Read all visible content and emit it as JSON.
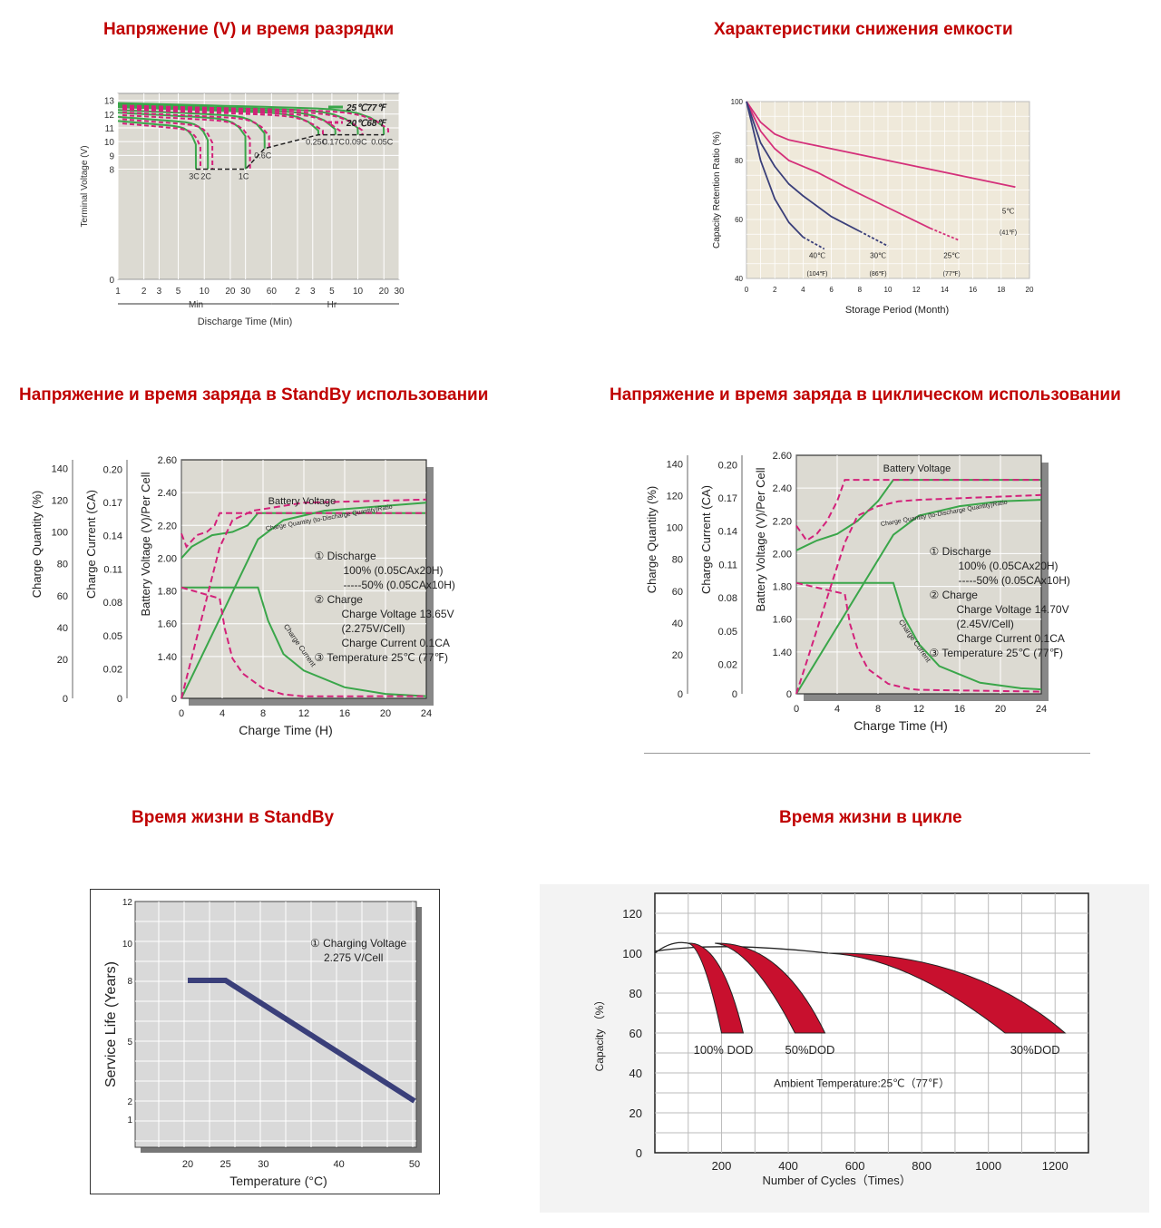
{
  "titles": {
    "discharge": "Напряжение (V) и время разрядки",
    "capacity_loss": "Характеристики снижения емкости",
    "standby_charge": "Напряжение и время заряда в StandBy использовании",
    "cyclic_charge": "Напряжение и время заряда в циклическом использовании",
    "standby_life": "Время жизни в StandBy",
    "cycle_life": "Время жизни в цикле"
  },
  "colors": {
    "title": "#c00000",
    "green": "#3aa64a",
    "magenta": "#d3217a",
    "navy": "#3a3f7a",
    "pink": "#d4307a",
    "plot_bg": "#dcdad2",
    "crimson": "#c8102e"
  },
  "chart_data": [
    {
      "id": "discharge",
      "type": "line",
      "xlabel": "Discharge Time (Min)",
      "ylabel": "Terminal Voltage (V)",
      "x_ticks_min": [
        "1",
        "2",
        "3",
        "5",
        "10",
        "20",
        "30",
        "60"
      ],
      "x_ticks_hr": [
        "2",
        "3",
        "5",
        "10",
        "20",
        "30"
      ],
      "x_group_labels": [
        "Min",
        "Hr"
      ],
      "y_ticks": [
        "0",
        "8",
        "9",
        "10",
        "11",
        "12",
        "13"
      ],
      "ylim": [
        0,
        13.5
      ],
      "legend": [
        "25℃77℉",
        "20℃68℉"
      ],
      "rates": [
        {
          "label": "3C",
          "minutes": 8,
          "start_v": 11.5
        },
        {
          "label": "2C",
          "minutes": 11,
          "start_v": 11.8
        },
        {
          "label": "1C",
          "minutes": 30,
          "start_v": 12.1
        },
        {
          "label": "0.6C",
          "minutes": 50,
          "start_v": 12.3
        },
        {
          "label": "0.25C",
          "minutes": 210,
          "start_v": 12.5
        },
        {
          "label": "0.17C",
          "minutes": 330,
          "start_v": 12.6
        },
        {
          "label": "0.09C",
          "minutes": 600,
          "start_v": 12.7
        },
        {
          "label": "0.05C",
          "minutes": 1200,
          "start_v": 12.8
        }
      ],
      "final_voltage_points": [
        [
          8,
          8
        ],
        [
          30,
          8
        ],
        [
          50,
          9.5
        ],
        [
          210,
          10.5
        ],
        [
          1200,
          10.5
        ]
      ]
    },
    {
      "id": "capacity_loss",
      "type": "line",
      "xlabel": "Storage Period (Month)",
      "ylabel": "Capacity Retention Ratio (%)",
      "x_ticks": [
        "0",
        "2",
        "4",
        "6",
        "8",
        "10",
        "12",
        "14",
        "16",
        "18",
        "20"
      ],
      "y_ticks": [
        "40",
        "60",
        "80",
        "100"
      ],
      "xlim": [
        0,
        20
      ],
      "ylim": [
        40,
        100
      ],
      "series": [
        {
          "name": "5℃",
          "sub": "(41℉)",
          "x": [
            0,
            1,
            2,
            3,
            5,
            8,
            12,
            16,
            19
          ],
          "y": [
            100,
            93,
            89,
            87,
            85,
            82,
            78,
            74,
            71
          ]
        },
        {
          "name": "25℃",
          "sub": "(77℉)",
          "x": [
            0,
            1,
            2,
            3,
            5,
            7,
            10,
            13,
            15
          ],
          "y": [
            100,
            90,
            84,
            80,
            76,
            71,
            64,
            57,
            53
          ]
        },
        {
          "name": "30℃",
          "sub": "(86℉)",
          "x": [
            0,
            1,
            2,
            3,
            4,
            6,
            8,
            10
          ],
          "y": [
            100,
            86,
            78,
            72,
            68,
            61,
            56,
            51
          ]
        },
        {
          "name": "40℃",
          "sub": "(104℉)",
          "x": [
            0,
            1,
            2,
            3,
            4,
            5.5
          ],
          "y": [
            100,
            80,
            67,
            59,
            54,
            50
          ]
        }
      ]
    },
    {
      "id": "standby_charge",
      "type": "line",
      "xlabel": "Charge Time (H)",
      "axes": [
        {
          "label": "Charge Quantity (%)",
          "ticks": [
            "0",
            "20",
            "40",
            "60",
            "80",
            "100",
            "120",
            "140"
          ]
        },
        {
          "label": "Charge Current (CA)",
          "ticks": [
            "0",
            "0.02",
            "0.05",
            "0.08",
            "0.11",
            "0.14",
            "0.17",
            "0.20"
          ]
        },
        {
          "label": "Battery Voltage (V)/Per Cell",
          "ticks": [
            "0",
            "1.40",
            "1.60",
            "1.80",
            "2.00",
            "2.20",
            "2.40",
            "2.60"
          ]
        }
      ],
      "x_ticks": [
        "0",
        "4",
        "8",
        "12",
        "16",
        "20",
        "24"
      ],
      "curve_labels": [
        "Battery Voltage",
        "Charge Quantity (to-Discharge Quantity)Ratio",
        "Charge Current"
      ],
      "notes": [
        "① Discharge",
        "100% (0.05CAx20H)",
        "-----50% (0.05CAx10H)",
        "② Charge",
        "Charge Voltage 13.65V",
        "(2.275V/Cell)",
        "Charge Current 0.1CA",
        "③ Temperature 25℃ (77℉)"
      ],
      "series": [
        {
          "name": "Battery Voltage",
          "x": [
            0,
            1,
            3,
            5,
            6.5,
            7.5,
            24
          ],
          "y": [
            2.0,
            2.07,
            2.14,
            2.16,
            2.2,
            2.275,
            2.275
          ]
        },
        {
          "name": "Charge Quantity (to-Discharge Quantity)Ratio",
          "x": [
            0,
            7.5,
            10,
            14,
            20,
            24
          ],
          "y": [
            0,
            100,
            112,
            118,
            121,
            123
          ]
        },
        {
          "name": "Charge Current",
          "x": [
            0,
            7.5,
            8.5,
            10,
            12,
            16,
            20,
            24
          ],
          "y": [
            0.1,
            0.1,
            0.07,
            0.04,
            0.025,
            0.01,
            0.004,
            0.002
          ]
        }
      ]
    },
    {
      "id": "cyclic_charge",
      "type": "line",
      "xlabel": "Charge Time (H)",
      "axes": [
        {
          "label": "Charge Quantity (%)",
          "ticks": [
            "0",
            "20",
            "40",
            "60",
            "80",
            "100",
            "120",
            "140"
          ]
        },
        {
          "label": "Charge Current (CA)",
          "ticks": [
            "0",
            "0.02",
            "0.05",
            "0.08",
            "0.11",
            "0.14",
            "0.17",
            "0.20"
          ]
        },
        {
          "label": "Battery Voltage (V)/Per Cell",
          "ticks": [
            "0",
            "1.40",
            "1.60",
            "1.80",
            "2.00",
            "2.20",
            "2.40",
            "2.60"
          ]
        }
      ],
      "x_ticks": [
        "0",
        "4",
        "8",
        "12",
        "16",
        "20",
        "24"
      ],
      "curve_labels": [
        "Battery Voltage",
        "Charge Quantity (to-Discharge Quantity)Ratio",
        "Charge Current"
      ],
      "notes": [
        "① Discharge",
        "100% (0.05CAx20H)",
        "-----50% (0.05CAx10H)",
        "② Charge",
        "Charge Voltage 14.70V",
        "(2.45V/Cell)",
        "Charge Current 0.1CA",
        "③ Temperature 25℃ (77℉)"
      ],
      "series": [
        {
          "name": "Battery Voltage",
          "x": [
            0,
            2,
            4,
            6,
            8,
            9.5,
            24
          ],
          "y": [
            2.02,
            2.08,
            2.12,
            2.2,
            2.32,
            2.45,
            2.45
          ]
        },
        {
          "name": "Charge Quantity (to-Discharge Quantity)Ratio",
          "x": [
            0,
            9.5,
            12,
            16,
            20,
            24
          ],
          "y": [
            0,
            100,
            112,
            118,
            121,
            122
          ]
        },
        {
          "name": "Charge Current",
          "x": [
            0,
            9.5,
            10.5,
            12,
            14,
            18,
            22,
            24
          ],
          "y": [
            0.1,
            0.1,
            0.07,
            0.045,
            0.025,
            0.01,
            0.005,
            0.004
          ]
        }
      ]
    },
    {
      "id": "standby_life",
      "type": "line",
      "xlabel": "Temperature (°C)",
      "ylabel": "Service Life (Years)",
      "x_ticks": [
        "20",
        "25",
        "30",
        "40",
        "50"
      ],
      "y_ticks": [
        "1",
        "2",
        "5",
        "8",
        "10",
        "12"
      ],
      "note_lines": [
        "① Charging Voltage",
        "2.275 V/Cell"
      ],
      "series": [
        {
          "x": [
            20,
            25,
            50
          ],
          "y": [
            8,
            8,
            2
          ]
        }
      ]
    },
    {
      "id": "cycle_life",
      "type": "area",
      "xlabel": "Number of Cycles（Times）",
      "ylabel": "Capacity （%）",
      "x_ticks": [
        "200",
        "400",
        "600",
        "800",
        "1000",
        "1200"
      ],
      "y_ticks": [
        "0",
        "20",
        "40",
        "60",
        "80",
        "100",
        "120"
      ],
      "xlim": [
        0,
        1300
      ],
      "ylim": [
        0,
        130
      ],
      "annotation": "Ambient Temperature:25℃（77℉）",
      "bands": [
        {
          "name": "100% DOD",
          "start": [
            100,
            105
          ],
          "end_x": [
            200,
            265
          ],
          "end_y": 60
        },
        {
          "name": "50%DOD",
          "start": [
            180,
            105
          ],
          "end_x": [
            420,
            510
          ],
          "end_y": 60
        },
        {
          "name": "30%DOD",
          "start": [
            520,
            100
          ],
          "end_x": [
            1050,
            1230
          ],
          "end_y": 60
        }
      ]
    }
  ]
}
